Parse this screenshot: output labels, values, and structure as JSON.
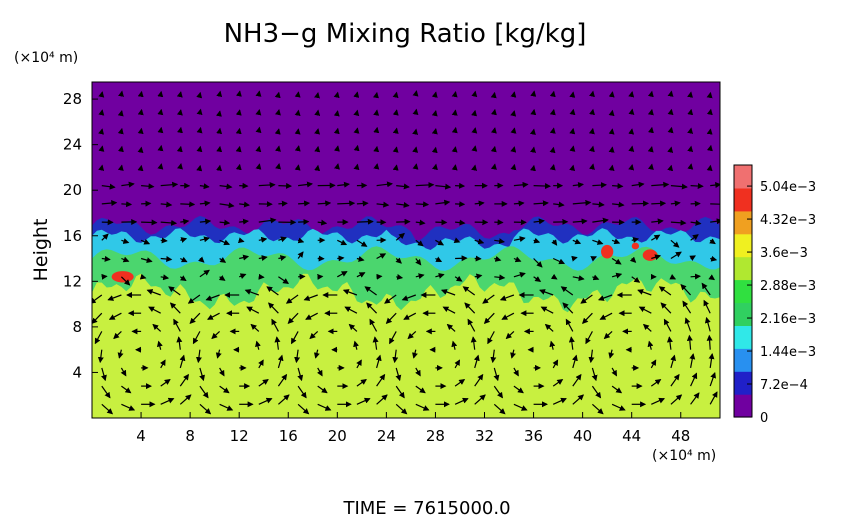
{
  "chart_data": {
    "type": "heatmap",
    "title": "NH3−g Mixing Ratio [kg/kg]",
    "ylabel": "Height",
    "y_unit_label": "(×10⁴ m)",
    "x_unit_label": "(×10⁴ m)",
    "footer": "TIME = 7615000.0",
    "x_ticks": [
      "4",
      "8",
      "12",
      "16",
      "20",
      "24",
      "28",
      "32",
      "36",
      "40",
      "44",
      "48"
    ],
    "x_tick_values": [
      4,
      8,
      12,
      16,
      20,
      24,
      28,
      32,
      36,
      40,
      44,
      48
    ],
    "y_ticks": [
      "4",
      "8",
      "12",
      "16",
      "20",
      "24",
      "28"
    ],
    "y_tick_values": [
      4,
      8,
      12,
      16,
      20,
      24,
      28
    ],
    "xlim": [
      0,
      51.2
    ],
    "ylim": [
      0,
      29.5
    ],
    "colorbar": {
      "ticks": [
        "0",
        "7.2e−4",
        "1.44e−3",
        "2.16e−3",
        "2.88e−3",
        "3.6e−3",
        "4.32e−3",
        "5.04e−3"
      ],
      "tick_values": [
        0,
        0.00072,
        0.00144,
        0.00216,
        0.00288,
        0.0036,
        0.00432,
        0.00504
      ],
      "range": [
        0,
        0.0055
      ],
      "colors": [
        "#7000a0",
        "#2020c8",
        "#2890f0",
        "#30e8e8",
        "#30d060",
        "#30e040",
        "#b0e830",
        "#f0f020",
        "#f0a020",
        "#f03020",
        "#f07070"
      ]
    },
    "field_colors": {
      "upper_layer": "#7000a0",
      "boundary_layer": "#2030c0",
      "cloud_layer": "#30c8e8",
      "mid_layer": "#50d858",
      "lower_layer": "#c8f040",
      "hot_spot": "#f03020"
    },
    "vectors": "wind arrows overlaid on the field"
  }
}
